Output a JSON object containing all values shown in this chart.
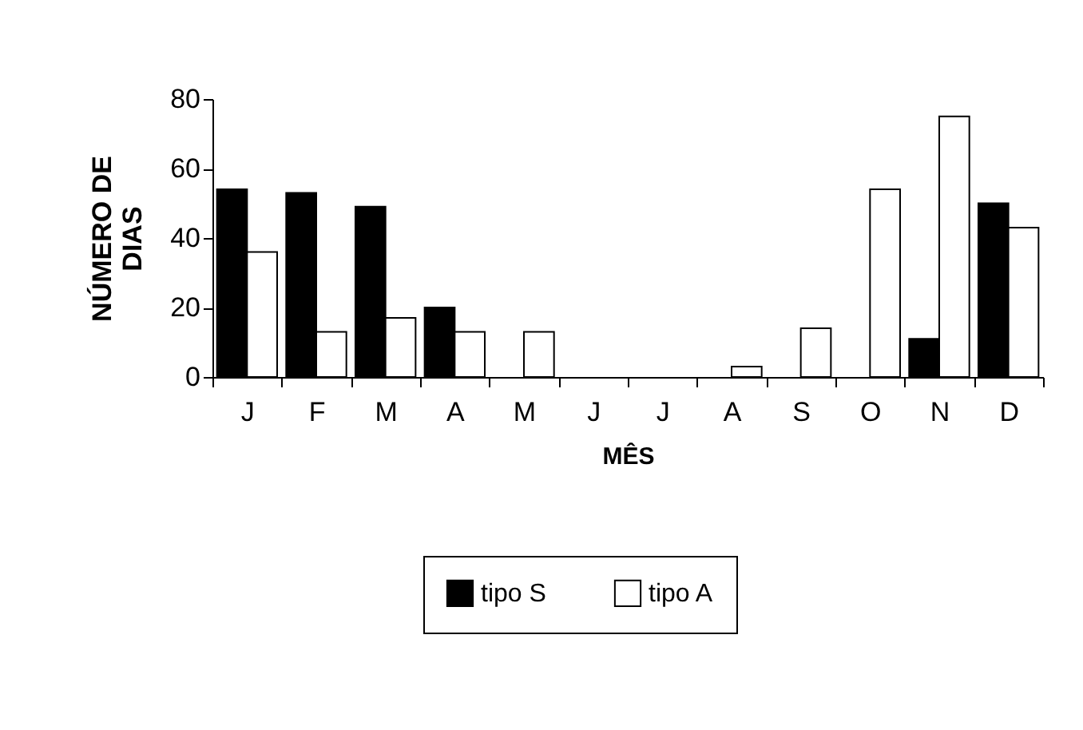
{
  "chart_data": {
    "type": "bar",
    "xlabel": "MÊS",
    "ylabel": "NÚMERO DE\nDIAS",
    "categories": [
      "J",
      "F",
      "M",
      "A",
      "M",
      "J",
      "J",
      "A",
      "S",
      "O",
      "N",
      "D"
    ],
    "series": [
      {
        "name": "tipo S",
        "color": "#000000",
        "values": [
          54,
          53,
          49,
          20,
          0,
          0,
          0,
          0,
          0,
          0,
          11,
          50
        ]
      },
      {
        "name": "tipo A",
        "color": "#ffffff",
        "values": [
          36,
          13,
          17,
          13,
          13,
          0,
          0,
          3,
          14,
          54,
          75,
          43
        ]
      }
    ],
    "ylim": [
      0,
      80
    ],
    "yticks": [
      0,
      20,
      40,
      60,
      80
    ],
    "grid": false,
    "legend": "bottom"
  }
}
